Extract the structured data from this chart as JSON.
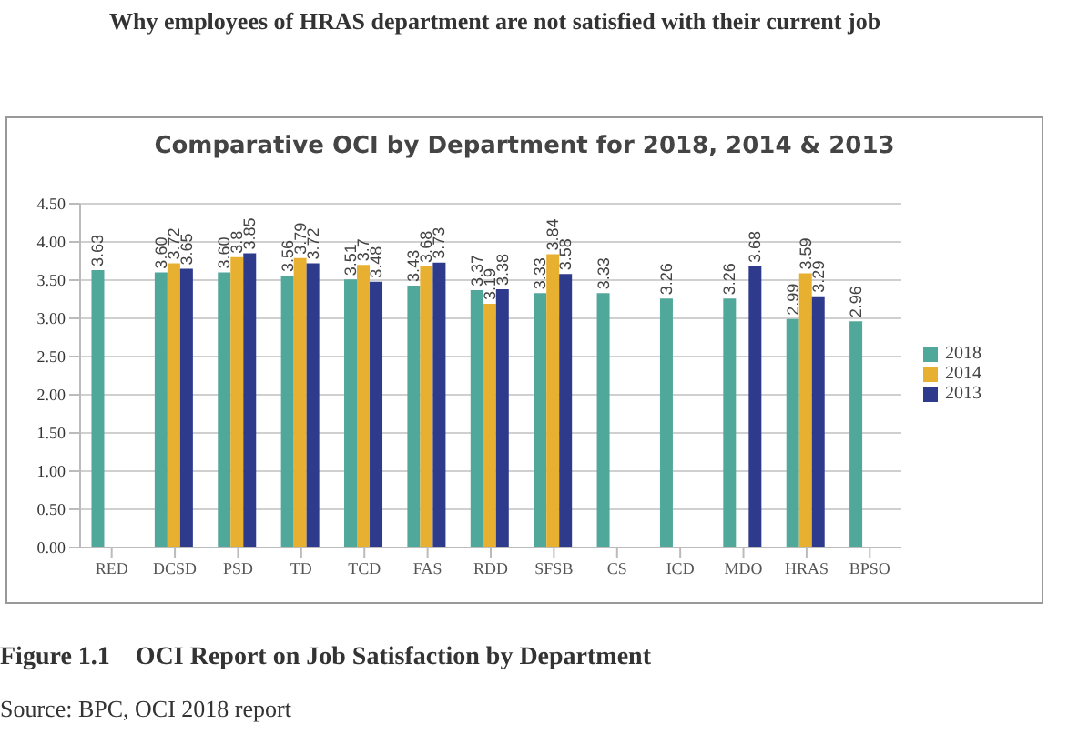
{
  "chart_data": {
    "type": "bar",
    "title": "Comparative OCI by Department for 2018, 2014 & 2013",
    "annotations": [
      "Why employees of HRAS department are not satisfied with their current job",
      "Figure 1.1    OCI Report on Job Satisfaction by Department",
      "Source: BPC, OCI 2018 report"
    ],
    "categories": [
      "RED",
      "DCSD",
      "PSD",
      "TD",
      "TCD",
      "FAS",
      "RDD",
      "SFSB",
      "CS",
      "ICD",
      "MDO",
      "HRAS",
      "BPSO"
    ],
    "series": [
      {
        "name": "2018",
        "color": "#4fa89a",
        "values": [
          3.63,
          3.6,
          3.6,
          3.56,
          3.51,
          3.43,
          3.37,
          3.33,
          3.33,
          3.26,
          3.26,
          2.99,
          2.96
        ],
        "value_labels": [
          "3.63",
          "3.60",
          "3.60",
          "3.56",
          "3.51",
          "3.43",
          "3.37",
          "3.33",
          "3.33",
          "3.26",
          "3.26",
          "2.99",
          "2.96"
        ]
      },
      {
        "name": "2014",
        "color": "#e8b030",
        "values": [
          null,
          3.72,
          3.8,
          3.79,
          3.7,
          3.68,
          3.19,
          3.84,
          null,
          null,
          null,
          3.59,
          null
        ],
        "value_labels": [
          null,
          "3.72",
          "3.8",
          "3.79",
          "3.7",
          "3.68",
          "3.19",
          "3.84",
          null,
          null,
          null,
          "3.59",
          null
        ]
      },
      {
        "name": "2013",
        "color": "#2e3a8c",
        "values": [
          null,
          3.65,
          3.85,
          3.72,
          3.48,
          3.73,
          3.38,
          3.58,
          null,
          null,
          3.68,
          3.29,
          null
        ],
        "value_labels": [
          null,
          "3.65",
          "3.85",
          "3.72",
          "3.48",
          "3.73",
          "3.38",
          "3.58",
          null,
          null,
          "3.68",
          "3.29",
          null
        ]
      }
    ],
    "ylim": [
      0,
      4.5
    ],
    "yticks": [
      {
        "value": 0,
        "label": "0.00"
      },
      {
        "value": 0.5,
        "label": "0.50"
      },
      {
        "value": 1,
        "label": "1.00"
      },
      {
        "value": 1.5,
        "label": "1.50"
      },
      {
        "value": 2,
        "label": "2.00"
      },
      {
        "value": 2.5,
        "label": "2.50"
      },
      {
        "value": 3,
        "label": "3.00"
      },
      {
        "value": 3.5,
        "label": "3.50"
      },
      {
        "value": 4,
        "label": "4.00"
      },
      {
        "value": 4.5,
        "label": "4.50"
      }
    ],
    "grid": "y",
    "legend": "right"
  }
}
